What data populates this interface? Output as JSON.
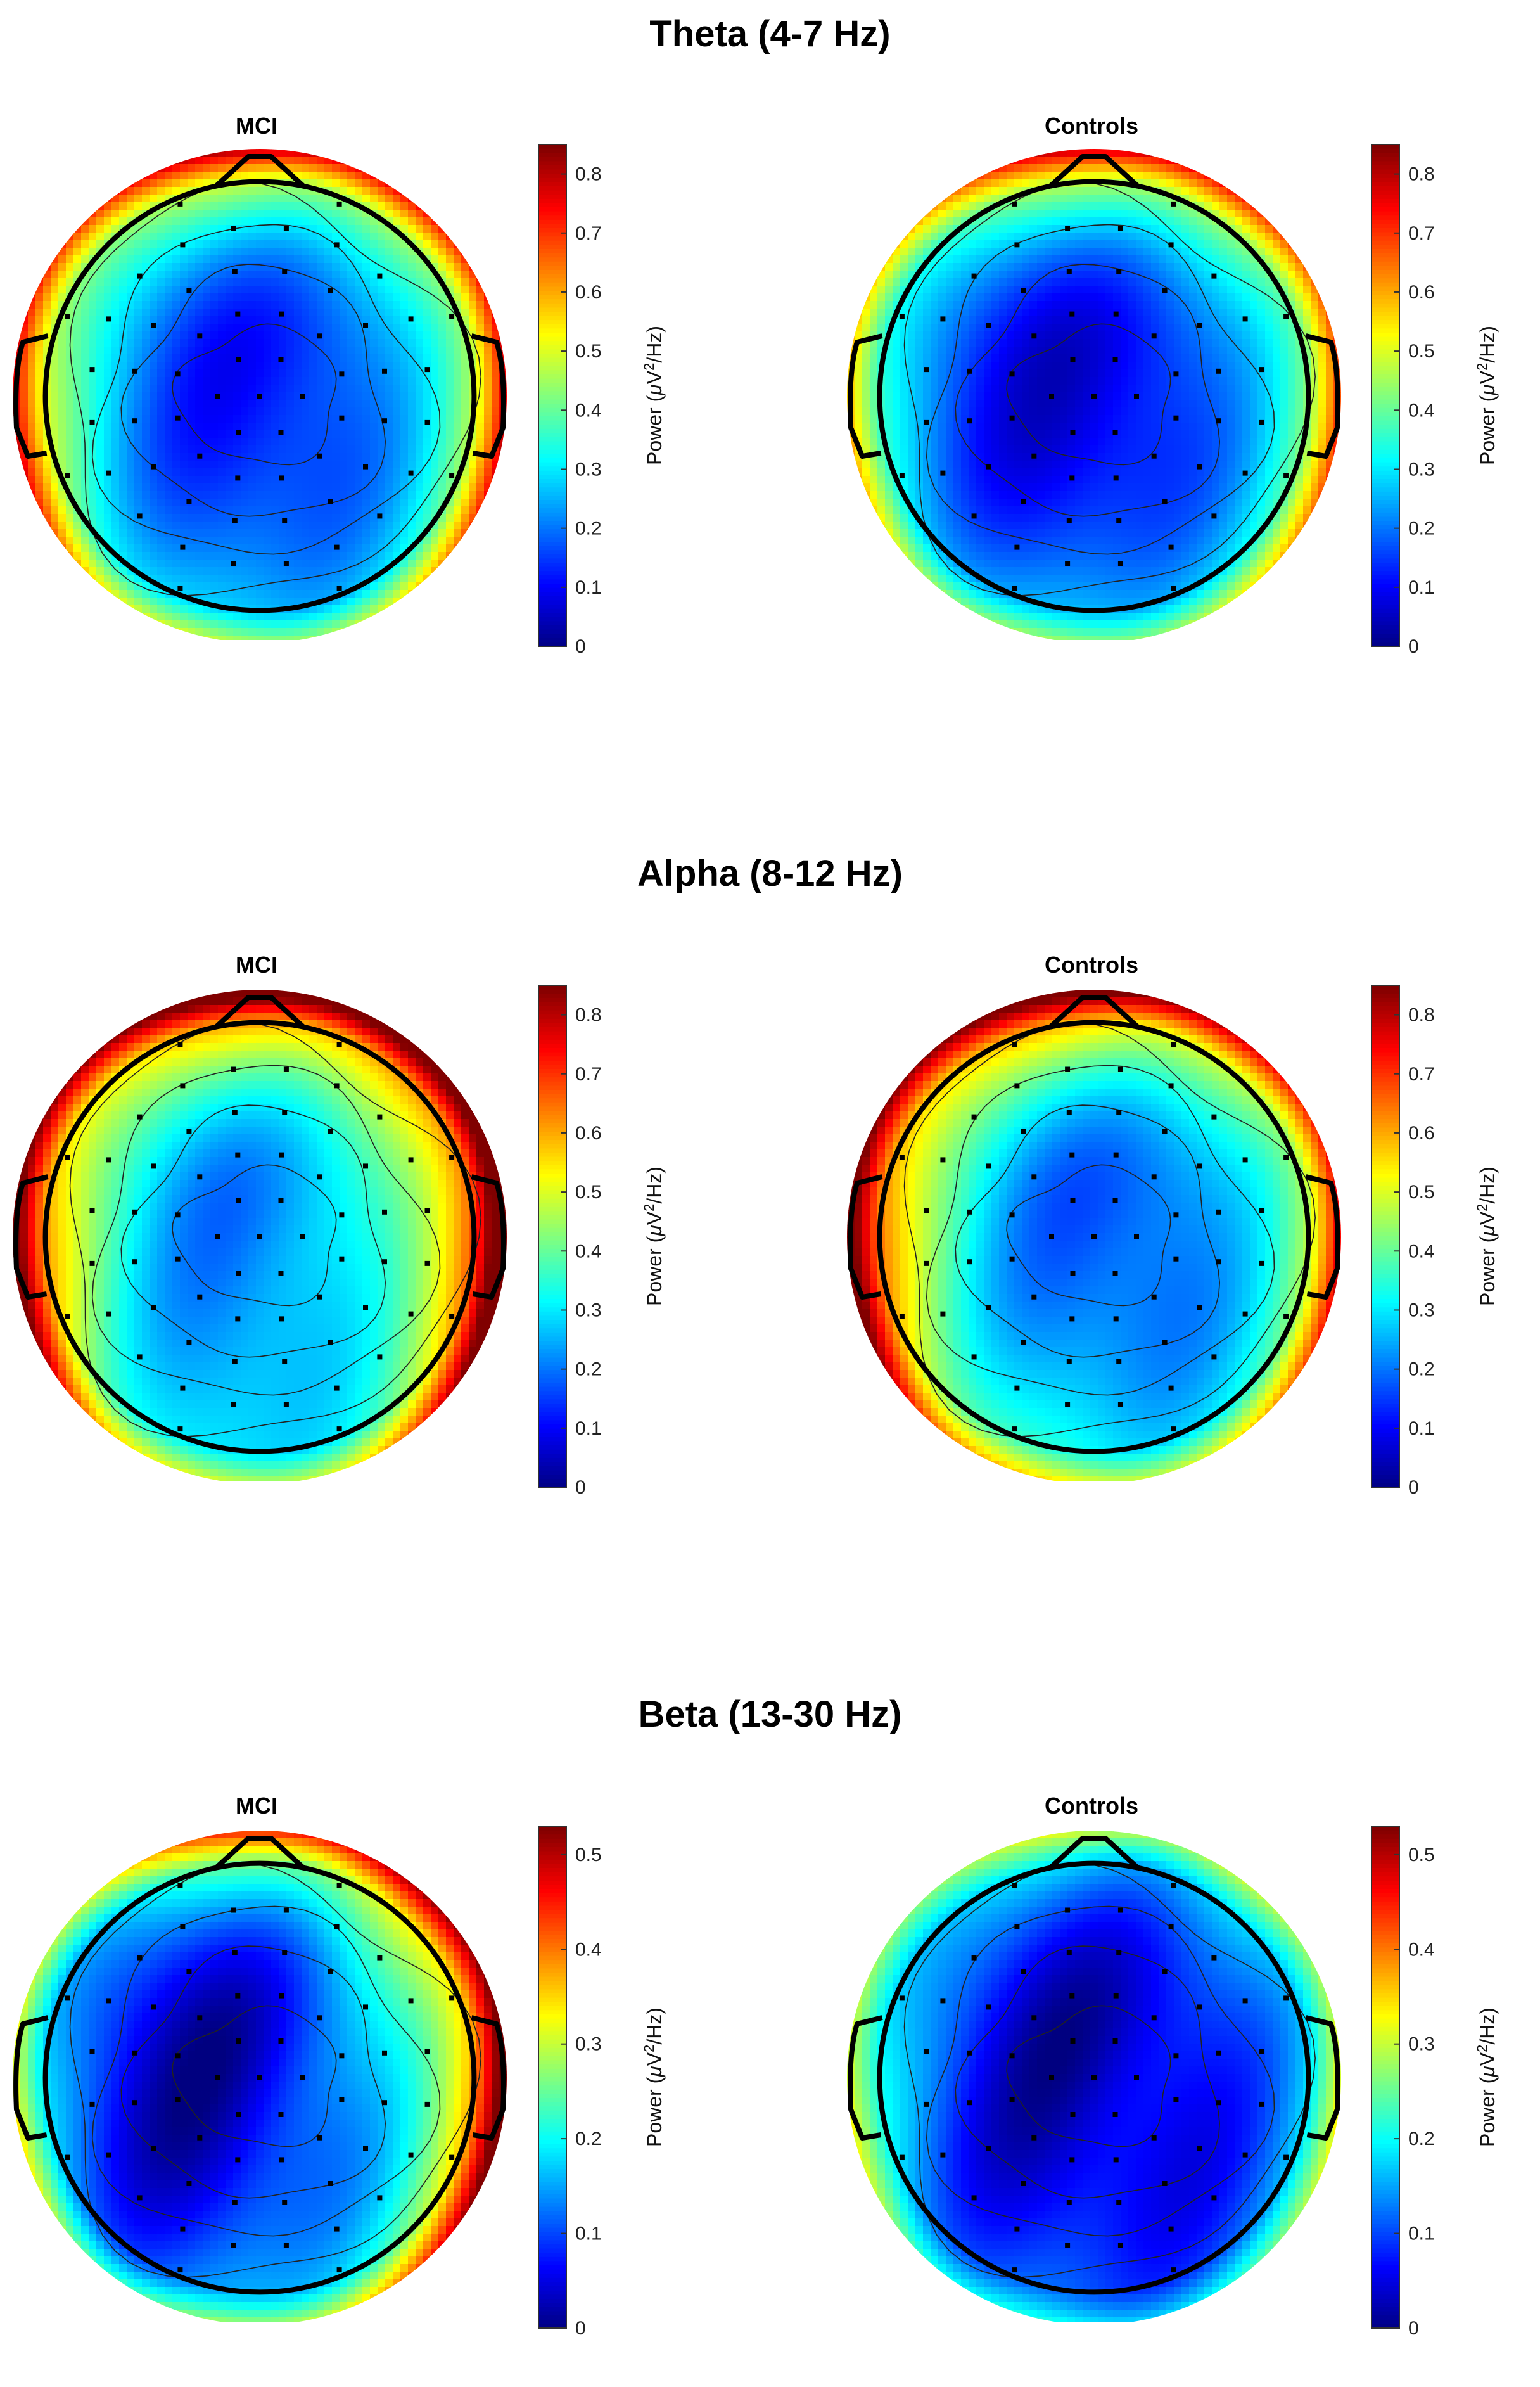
{
  "chart_data": [
    {
      "type": "heatmap",
      "title": "Theta (4-7 Hz)",
      "subplots": [
        "MCI",
        "Controls"
      ],
      "colorbar": {
        "label_prefix": "Power (",
        "label_mu": "μ",
        "label_unit": "V",
        "label_exp": "2",
        "label_suffix": "/Hz)",
        "range": [
          0,
          0.85
        ],
        "ticks": [
          "0",
          "0.1",
          "0.2",
          "0.3",
          "0.4",
          "0.5",
          "0.6",
          "0.7",
          "0.8"
        ]
      },
      "pattern": {
        "MCI": {
          "center": 0.12,
          "frontal": 0.55,
          "lateral": 0.55,
          "occipital": 0.3,
          "asym": 0.0
        },
        "Controls": {
          "center": 0.08,
          "frontal": 0.55,
          "lateral": 0.45,
          "occipital": 0.3,
          "asym": 0.05
        }
      }
    },
    {
      "type": "heatmap",
      "title": "Alpha (8-12 Hz)",
      "subplots": [
        "MCI",
        "Controls"
      ],
      "colorbar": {
        "label_prefix": "Power (",
        "label_mu": "μ",
        "label_unit": "V",
        "label_exp": "2",
        "label_suffix": "/Hz)",
        "range": [
          0,
          0.85
        ],
        "ticks": [
          "0",
          "0.1",
          "0.2",
          "0.3",
          "0.4",
          "0.5",
          "0.6",
          "0.7",
          "0.8"
        ]
      },
      "pattern": {
        "MCI": {
          "center": 0.22,
          "frontal": 0.68,
          "lateral": 0.72,
          "occipital": 0.3,
          "asym": 0.05
        },
        "Controls": {
          "center": 0.18,
          "frontal": 0.65,
          "lateral": 0.62,
          "occipital": 0.35,
          "asym": -0.08
        }
      }
    },
    {
      "type": "heatmap",
      "title": "Beta (13-30 Hz)",
      "subplots": [
        "MCI",
        "Controls"
      ],
      "colorbar": {
        "label_prefix": "Power (",
        "label_mu": "μ",
        "label_unit": "V",
        "label_exp": "2",
        "label_suffix": "/Hz)",
        "range": [
          0,
          0.53
        ],
        "ticks": [
          "0",
          "0.1",
          "0.2",
          "0.3",
          "0.4",
          "0.5"
        ]
      },
      "pattern": {
        "MCI": {
          "center": 0.05,
          "frontal": 0.3,
          "lateral": 0.32,
          "occipital": 0.18,
          "asym": 0.12
        },
        "Controls": {
          "center": 0.03,
          "frontal": 0.2,
          "lateral": 0.22,
          "occipital": 0.12,
          "asym": 0.0
        }
      }
    }
  ]
}
